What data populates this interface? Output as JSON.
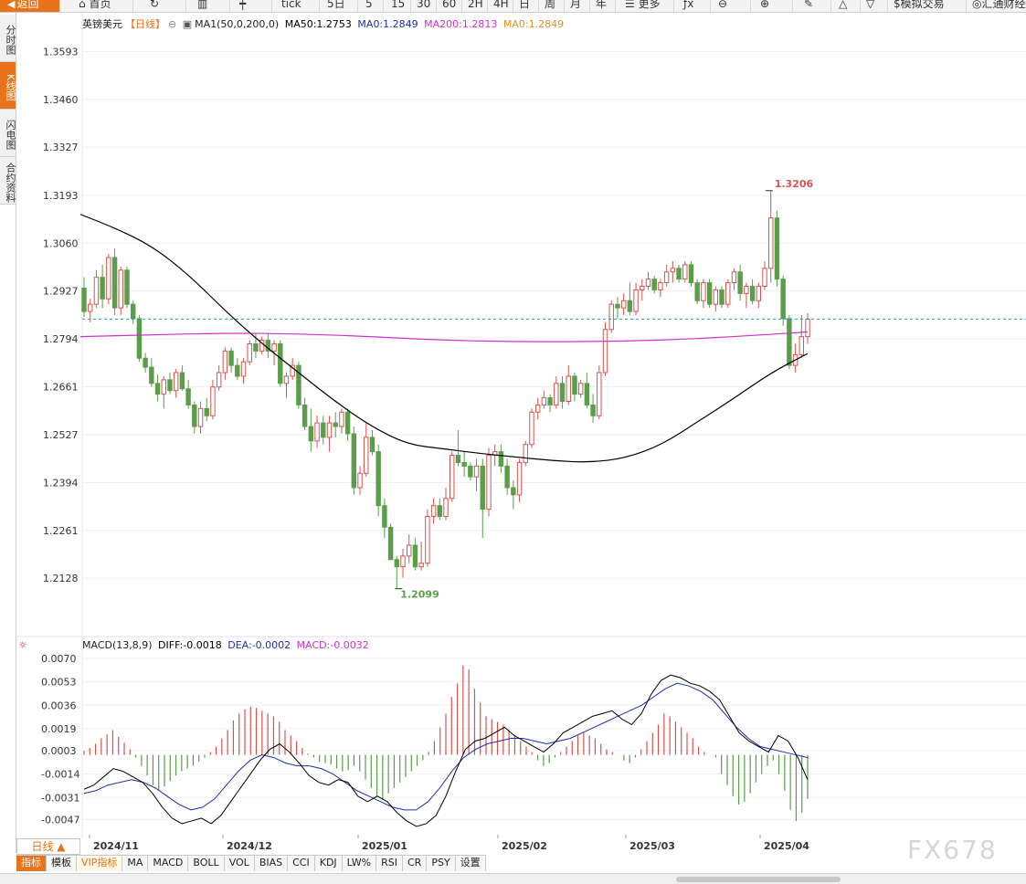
{
  "toolbar": {
    "back": "返回",
    "home": "首页",
    "tick": "tick",
    "p5d": "5日",
    "p5": "5",
    "p15": "15",
    "p30": "30",
    "p60": "60",
    "p2h": "2H",
    "p4h": "4H",
    "pday": "日",
    "pweek": "周",
    "pmonth": "月",
    "pyear": "年",
    "more": "更多",
    "sim": "模拟交易",
    "ref": "汇通财经"
  },
  "sidebar": {
    "tabs": [
      {
        "label": "分时图",
        "active": false
      },
      {
        "label": "K线图",
        "active": true
      },
      {
        "label": "闪电图",
        "active": false
      },
      {
        "label": "合约资料",
        "active": false
      }
    ]
  },
  "chart_legend": {
    "symbol": "英镑美元",
    "period": "【日线】",
    "ma_def": "MA1(50,0,200,0)",
    "ma50": "MA50:1.2753",
    "ma0": "MA0:1.2849",
    "ma200": "MA200:1.2813",
    "ma0b": "MA0:1.2849"
  },
  "macd_legend": {
    "name": "MACD(13,8,9)",
    "diff": "DIFF:-0.0018",
    "dea": "DEA:-0.0002",
    "macd": "MACD:-0.0032"
  },
  "colors": {
    "up": "#d9534f",
    "down": "#5a9e4b",
    "ma50": "#000000",
    "ma200": "#cc33cc",
    "diff": "#000000",
    "dea": "#1a2fb0",
    "accent": "#e8731a",
    "current_price_line": "#2a9d9d"
  },
  "chart_data": [
    {
      "type": "candlestick",
      "title": "英镑美元 【日线】",
      "ylim": [
        1.206,
        1.366
      ],
      "yticks": [
        "1.3593",
        "1.3460",
        "1.3327",
        "1.3193",
        "1.3060",
        "1.2927",
        "1.2794",
        "1.2661",
        "1.2527",
        "1.2394",
        "1.2261",
        "1.2128"
      ],
      "xlabels": [
        "2024/11",
        "2024/12",
        "2025/01",
        "2025/02",
        "2025/03",
        "2025/04"
      ],
      "annotations": {
        "high": "1.3206",
        "low": "1.2099"
      },
      "current_price": 1.2849,
      "ohlc": [
        [
          1.2935,
          1.2965,
          1.2855,
          1.287
        ],
        [
          1.287,
          1.2905,
          1.284,
          1.289
        ],
        [
          1.289,
          1.2985,
          1.288,
          1.2965
        ],
        [
          1.2965,
          1.3,
          1.288,
          1.2905
        ],
        [
          1.2905,
          1.303,
          1.289,
          1.302
        ],
        [
          1.302,
          1.3045,
          1.286,
          1.288
        ],
        [
          1.288,
          1.2995,
          1.286,
          1.2985
        ],
        [
          1.2985,
          1.2995,
          1.288,
          1.289
        ],
        [
          1.289,
          1.29,
          1.2835,
          1.285
        ],
        [
          1.285,
          1.286,
          1.273,
          1.274
        ],
        [
          1.274,
          1.2755,
          1.27,
          1.2715
        ],
        [
          1.2715,
          1.274,
          1.266,
          1.267
        ],
        [
          1.267,
          1.2695,
          1.262,
          1.264
        ],
        [
          1.264,
          1.269,
          1.26,
          1.268
        ],
        [
          1.268,
          1.27,
          1.264,
          1.265
        ],
        [
          1.265,
          1.271,
          1.263,
          1.27
        ],
        [
          1.27,
          1.272,
          1.265,
          1.2655
        ],
        [
          1.2655,
          1.268,
          1.26,
          1.261
        ],
        [
          1.261,
          1.262,
          1.253,
          1.255
        ],
        [
          1.255,
          1.262,
          1.253,
          1.26
        ],
        [
          1.26,
          1.263,
          1.2565,
          1.258
        ],
        [
          1.258,
          1.268,
          1.257,
          1.266
        ],
        [
          1.266,
          1.272,
          1.265,
          1.27
        ],
        [
          1.27,
          1.277,
          1.268,
          1.276
        ],
        [
          1.276,
          1.277,
          1.27,
          1.272
        ],
        [
          1.272,
          1.274,
          1.268,
          1.269
        ],
        [
          1.269,
          1.274,
          1.267,
          1.273
        ],
        [
          1.273,
          1.279,
          1.272,
          1.278
        ],
        [
          1.278,
          1.281,
          1.274,
          1.276
        ],
        [
          1.276,
          1.28,
          1.275,
          1.279
        ],
        [
          1.279,
          1.281,
          1.274,
          1.276
        ],
        [
          1.276,
          1.279,
          1.272,
          1.278
        ],
        [
          1.278,
          1.279,
          1.266,
          1.267
        ],
        [
          1.267,
          1.27,
          1.263,
          1.269
        ],
        [
          1.269,
          1.274,
          1.268,
          1.272
        ],
        [
          1.272,
          1.273,
          1.26,
          1.261
        ],
        [
          1.261,
          1.263,
          1.254,
          1.255
        ],
        [
          1.255,
          1.26,
          1.248,
          1.251
        ],
        [
          1.251,
          1.258,
          1.249,
          1.256
        ],
        [
          1.256,
          1.258,
          1.25,
          1.252
        ],
        [
          1.252,
          1.258,
          1.248,
          1.256
        ],
        [
          1.256,
          1.259,
          1.252,
          1.255
        ],
        [
          1.255,
          1.26,
          1.253,
          1.259
        ],
        [
          1.259,
          1.26,
          1.251,
          1.253
        ],
        [
          1.253,
          1.255,
          1.236,
          1.238
        ],
        [
          1.238,
          1.244,
          1.236,
          1.242
        ],
        [
          1.242,
          1.256,
          1.241,
          1.252
        ],
        [
          1.252,
          1.254,
          1.247,
          1.248
        ],
        [
          1.248,
          1.25,
          1.23,
          1.233
        ],
        [
          1.233,
          1.235,
          1.224,
          1.227
        ],
        [
          1.227,
          1.228,
          1.218,
          1.218
        ],
        [
          1.218,
          1.219,
          1.2099,
          1.216
        ],
        [
          1.216,
          1.221,
          1.213,
          1.219
        ],
        [
          1.219,
          1.225,
          1.217,
          1.222
        ],
        [
          1.222,
          1.224,
          1.215,
          1.216
        ],
        [
          1.216,
          1.223,
          1.215,
          1.217
        ],
        [
          1.217,
          1.232,
          1.216,
          1.23
        ],
        [
          1.23,
          1.235,
          1.228,
          1.233
        ],
        [
          1.233,
          1.235,
          1.229,
          1.23
        ],
        [
          1.23,
          1.238,
          1.229,
          1.235
        ],
        [
          1.235,
          1.248,
          1.234,
          1.247
        ],
        [
          1.247,
          1.254,
          1.244,
          1.245
        ],
        [
          1.245,
          1.248,
          1.241,
          1.244
        ],
        [
          1.244,
          1.245,
          1.24,
          1.241
        ],
        [
          1.241,
          1.246,
          1.237,
          1.244
        ],
        [
          1.244,
          1.246,
          1.224,
          1.232
        ],
        [
          1.232,
          1.249,
          1.23,
          1.247
        ],
        [
          1.247,
          1.25,
          1.244,
          1.248
        ],
        [
          1.248,
          1.25,
          1.242,
          1.244
        ],
        [
          1.244,
          1.246,
          1.236,
          1.238
        ],
        [
          1.238,
          1.24,
          1.232,
          1.236
        ],
        [
          1.236,
          1.246,
          1.234,
          1.245
        ],
        [
          1.245,
          1.251,
          1.244,
          1.25
        ],
        [
          1.25,
          1.26,
          1.249,
          1.259
        ],
        [
          1.259,
          1.263,
          1.257,
          1.261
        ],
        [
          1.261,
          1.265,
          1.26,
          1.263
        ],
        [
          1.263,
          1.264,
          1.259,
          1.261
        ],
        [
          1.261,
          1.269,
          1.26,
          1.267
        ],
        [
          1.267,
          1.269,
          1.26,
          1.262
        ],
        [
          1.262,
          1.272,
          1.261,
          1.269
        ],
        [
          1.269,
          1.27,
          1.262,
          1.264
        ],
        [
          1.264,
          1.268,
          1.263,
          1.267
        ],
        [
          1.267,
          1.27,
          1.26,
          1.261
        ],
        [
          1.261,
          1.264,
          1.256,
          1.258
        ],
        [
          1.258,
          1.272,
          1.257,
          1.27
        ],
        [
          1.27,
          1.284,
          1.269,
          1.282
        ],
        [
          1.282,
          1.29,
          1.281,
          1.289
        ],
        [
          1.289,
          1.291,
          1.285,
          1.288
        ],
        [
          1.288,
          1.292,
          1.286,
          1.29
        ],
        [
          1.29,
          1.295,
          1.286,
          1.287
        ],
        [
          1.287,
          1.295,
          1.286,
          1.293
        ],
        [
          1.293,
          1.296,
          1.29,
          1.294
        ],
        [
          1.294,
          1.298,
          1.293,
          1.296
        ],
        [
          1.296,
          1.297,
          1.292,
          1.293
        ],
        [
          1.293,
          1.296,
          1.291,
          1.295
        ],
        [
          1.295,
          1.3,
          1.294,
          1.298
        ],
        [
          1.298,
          1.301,
          1.295,
          1.299
        ],
        [
          1.299,
          1.3,
          1.295,
          1.296
        ],
        [
          1.296,
          1.301,
          1.295,
          1.3
        ],
        [
          1.3,
          1.301,
          1.294,
          1.295
        ],
        [
          1.295,
          1.296,
          1.289,
          1.29
        ],
        [
          1.29,
          1.296,
          1.288,
          1.295
        ],
        [
          1.295,
          1.296,
          1.288,
          1.289
        ],
        [
          1.289,
          1.294,
          1.287,
          1.293
        ],
        [
          1.293,
          1.294,
          1.288,
          1.289
        ],
        [
          1.289,
          1.296,
          1.288,
          1.295
        ],
        [
          1.295,
          1.299,
          1.293,
          1.298
        ],
        [
          1.298,
          1.3,
          1.29,
          1.292
        ],
        [
          1.292,
          1.295,
          1.288,
          1.294
        ],
        [
          1.294,
          1.296,
          1.289,
          1.29
        ],
        [
          1.29,
          1.295,
          1.288,
          1.294
        ],
        [
          1.294,
          1.301,
          1.293,
          1.299
        ],
        [
          1.299,
          1.3206,
          1.295,
          1.313
        ],
        [
          1.313,
          1.315,
          1.294,
          1.296
        ],
        [
          1.296,
          1.297,
          1.283,
          1.285
        ],
        [
          1.285,
          1.286,
          1.271,
          1.272
        ],
        [
          1.272,
          1.278,
          1.27,
          1.275
        ],
        [
          1.275,
          1.286,
          1.274,
          1.28
        ],
        [
          1.28,
          1.2865,
          1.278,
          1.2849
        ]
      ]
    },
    {
      "type": "line",
      "name": "MA50",
      "anchors_x_fraction": [
        0,
        0.05,
        0.1,
        0.15,
        0.2,
        0.25,
        0.3,
        0.35,
        0.4,
        0.45,
        0.5,
        0.55,
        0.6,
        0.65,
        0.7,
        0.75,
        0.8,
        0.85,
        0.9,
        0.95,
        1.0
      ],
      "values": [
        1.314,
        1.31,
        1.305,
        1.297,
        1.287,
        1.278,
        1.27,
        1.262,
        1.255,
        1.25,
        1.2488,
        1.2475,
        1.2465,
        1.2455,
        1.245,
        1.2462,
        1.25,
        1.2565,
        1.263,
        1.27,
        1.2753
      ]
    },
    {
      "type": "line",
      "name": "MA200",
      "anchors_x_fraction": [
        0,
        0.1,
        0.2,
        0.3,
        0.4,
        0.5,
        0.6,
        0.7,
        0.8,
        0.9,
        1.0
      ],
      "values": [
        1.28,
        1.2805,
        1.281,
        1.2808,
        1.28,
        1.279,
        1.2786,
        1.2786,
        1.279,
        1.28,
        1.2813
      ]
    },
    {
      "type": "bar",
      "title": "MACD(13,8,9)",
      "ylim": [
        -0.0058,
        0.0076
      ],
      "yticks": [
        "0.0070",
        "0.0053",
        "0.0036",
        "0.0019",
        "0.0003",
        "-0.0014",
        "-0.0031",
        "-0.0047"
      ],
      "macd_hist": [
        0.0003,
        0.0005,
        0.0008,
        0.0012,
        0.0015,
        0.0018,
        0.0013,
        0.0009,
        0.0004,
        -0.0002,
        -0.0008,
        -0.0015,
        -0.0022,
        -0.0026,
        -0.0023,
        -0.0019,
        -0.0015,
        -0.0012,
        -0.001,
        -0.0008,
        -0.0005,
        -0.0002,
        0.0002,
        0.0006,
        0.0012,
        0.0018,
        0.0025,
        0.003,
        0.0033,
        0.0035,
        0.0034,
        0.0032,
        0.003,
        0.0028,
        0.0024,
        0.0018,
        0.0014,
        0.001,
        0.0005,
        0.0001,
        -0.0002,
        -0.0005,
        -0.0006,
        -0.0007,
        -0.001,
        -0.0012,
        -0.0011,
        -0.0008,
        -0.0012,
        -0.0018,
        -0.0024,
        -0.003,
        -0.0032,
        -0.0028,
        -0.0024,
        -0.002,
        -0.0016,
        -0.0012,
        -0.0008,
        -0.0004,
        0.0002,
        0.001,
        0.002,
        0.003,
        0.0042,
        0.0052,
        0.0065,
        0.0062,
        0.0048,
        0.0038,
        0.0028,
        0.0026,
        0.0024,
        0.0022,
        0.0018,
        0.0014,
        0.001,
        0.0006,
        0.0002,
        -0.0004,
        -0.0008,
        -0.0006,
        -0.0002,
        0.0002,
        0.0006,
        0.001,
        0.0014,
        0.0016,
        0.0014,
        0.0012,
        0.0008,
        0.0004,
        0.0002,
        0.0,
        -0.0004,
        -0.0006,
        -0.0002,
        0.0004,
        0.001,
        0.0016,
        0.0022,
        0.003,
        0.0028,
        0.0024,
        0.002,
        0.0016,
        0.0012,
        0.0006,
        0.0002,
        0.0,
        -0.0002,
        -0.0014,
        -0.0022,
        -0.003,
        -0.0036,
        -0.0034,
        -0.0028,
        -0.002,
        -0.0014,
        -0.0008,
        -0.0004,
        -0.0014,
        -0.0026,
        -0.004,
        -0.0048,
        -0.0042,
        -0.0032
      ],
      "diff": [
        -0.0025,
        -0.0022,
        -0.0016,
        -0.001,
        -0.0012,
        -0.0016,
        -0.002,
        -0.0028,
        -0.0038,
        -0.0046,
        -0.005,
        -0.0048,
        -0.0046,
        -0.005,
        -0.0044,
        -0.0034,
        -0.0024,
        -0.0014,
        -0.0004,
        0.0004,
        0.0008,
        0.0002,
        -0.0006,
        -0.0015,
        -0.002,
        -0.0022,
        -0.0018,
        -0.002,
        -0.003,
        -0.0034,
        -0.003,
        -0.0034,
        -0.0042,
        -0.0048,
        -0.0052,
        -0.005,
        -0.0044,
        -0.003,
        -0.0012,
        0.0004,
        0.001,
        0.0012,
        0.0016,
        0.002,
        0.0014,
        0.001,
        0.0006,
        0.0002,
        0.0008,
        0.0016,
        0.002,
        0.0024,
        0.0028,
        0.003,
        0.0032,
        0.0026,
        0.0022,
        0.003,
        0.0044,
        0.0054,
        0.0058,
        0.0056,
        0.0052,
        0.005,
        0.0046,
        0.004,
        0.0028,
        0.0016,
        0.001,
        0.0006,
        0.0002,
        0.0014,
        0.001,
        -0.0002,
        -0.0018
      ],
      "dea": [
        -0.0028,
        -0.0026,
        -0.0022,
        -0.002,
        -0.0018,
        -0.002,
        -0.0024,
        -0.003,
        -0.0036,
        -0.004,
        -0.0038,
        -0.0032,
        -0.0022,
        -0.0012,
        -0.0004,
        0.0,
        -0.0002,
        -0.0006,
        -0.0008,
        -0.0008,
        -0.001,
        -0.0014,
        -0.002,
        -0.0026,
        -0.003,
        -0.0034,
        -0.0038,
        -0.004,
        -0.004,
        -0.0034,
        -0.0024,
        -0.0012,
        -0.0002,
        0.0004,
        0.0008,
        0.001,
        0.0012,
        0.0012,
        0.001,
        0.0008,
        0.001,
        0.0012,
        0.0016,
        0.002,
        0.0024,
        0.0028,
        0.0032,
        0.0036,
        0.0042,
        0.0048,
        0.0052,
        0.005,
        0.0046,
        0.004,
        0.003,
        0.002,
        0.0012,
        0.0006,
        0.0004,
        0.0002,
        0.0,
        -0.0002
      ]
    }
  ],
  "bottom": {
    "period": "日线",
    "tabs": [
      {
        "label": "指标",
        "cls": "active"
      },
      {
        "label": "模板",
        "cls": ""
      },
      {
        "label": "VIP指标",
        "cls": "vip"
      },
      {
        "label": "MA",
        "cls": ""
      },
      {
        "label": "MACD",
        "cls": ""
      },
      {
        "label": "BOLL",
        "cls": ""
      },
      {
        "label": "VOL",
        "cls": ""
      },
      {
        "label": "BIAS",
        "cls": ""
      },
      {
        "label": "CCI",
        "cls": ""
      },
      {
        "label": "KDJ",
        "cls": ""
      },
      {
        "label": "LW%",
        "cls": ""
      },
      {
        "label": "RSI",
        "cls": ""
      },
      {
        "label": "CR",
        "cls": ""
      },
      {
        "label": "PSY",
        "cls": ""
      },
      {
        "label": "设置",
        "cls": ""
      }
    ]
  },
  "watermark": "FX678"
}
